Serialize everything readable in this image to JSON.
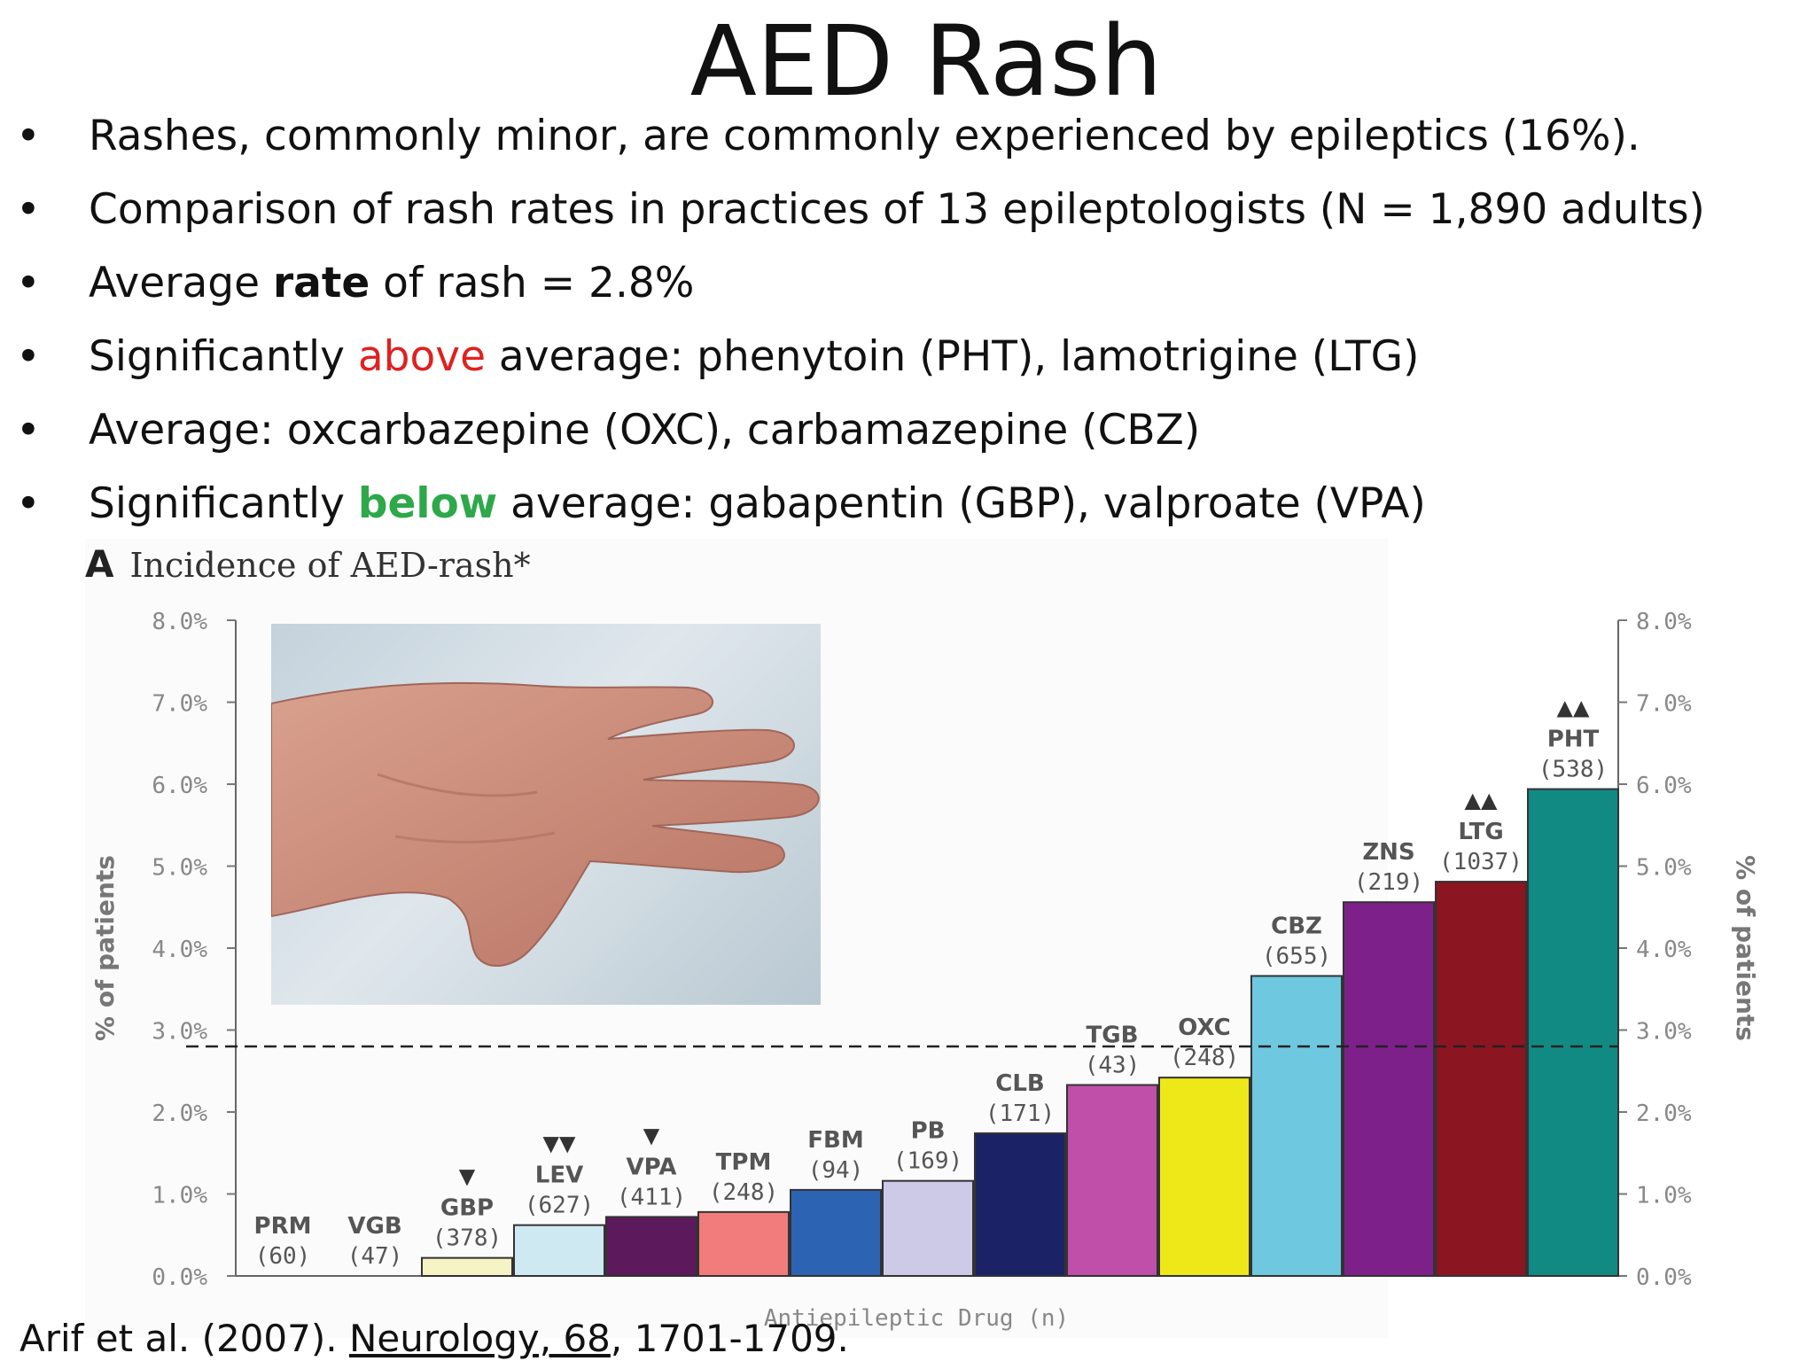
{
  "title": "AED Rash",
  "bullets": [
    {
      "marker": "•",
      "parts": [
        {
          "text": "Rashes, commonly minor, are commonly experienced by epileptics (16%)."
        }
      ]
    },
    {
      "marker": "•",
      "parts": [
        {
          "text": "Comparison of rash rates in practices of 13 epileptologists (N = 1,890 adults)"
        }
      ]
    },
    {
      "marker": "•",
      "parts": [
        {
          "text": "Average "
        },
        {
          "text": "rate",
          "style": "bold"
        },
        {
          "text": " of rash = 2.8%"
        }
      ]
    },
    {
      "marker": "•",
      "parts": [
        {
          "text": "Significantly "
        },
        {
          "text": "above",
          "style": "red"
        },
        {
          "text": " average:  phenytoin (PHT), lamotrigine (LTG)"
        }
      ]
    },
    {
      "marker": "•",
      "parts": [
        {
          "text": "Average: oxcarbazepine (OXC), carbamazepine (CBZ)"
        }
      ]
    },
    {
      "marker": "•",
      "parts": [
        {
          "text": "Significantly "
        },
        {
          "text": "below",
          "style": "green"
        },
        {
          "text": " average: gabapentin (GBP), valproate (VPA)"
        }
      ]
    }
  ],
  "figure": {
    "letter": "A",
    "title": "Incidence of AED-rash*",
    "photo_alt": "hand with rash"
  },
  "chart_data": {
    "type": "bar",
    "ylabel": "% of patients",
    "y2label": "% of patients",
    "xlabel": "Antiepileptic Drug (n)",
    "ylim": [
      0,
      8
    ],
    "yticks": [
      "0.0%",
      "1.0%",
      "2.0%",
      "3.0%",
      "4.0%",
      "5.0%",
      "6.0%",
      "7.0%",
      "8.0%"
    ],
    "average_line": 2.8,
    "bars": [
      {
        "drug": "PRM",
        "n": "(60)",
        "value": 0.0,
        "color": "#ffffff",
        "marker": ""
      },
      {
        "drug": "VGB",
        "n": "(47)",
        "value": 0.0,
        "color": "#ffffff",
        "marker": ""
      },
      {
        "drug": "GBP",
        "n": "(378)",
        "value": 0.22,
        "color": "#f6f3c4",
        "marker": "▼"
      },
      {
        "drug": "LEV",
        "n": "(627)",
        "value": 0.62,
        "color": "#cfe9f3",
        "marker": "▼▼"
      },
      {
        "drug": "VPA",
        "n": "(411)",
        "value": 0.72,
        "color": "#5c1a5c",
        "marker": "▼"
      },
      {
        "drug": "TPM",
        "n": "(248)",
        "value": 0.78,
        "color": "#f27b7b",
        "marker": ""
      },
      {
        "drug": "FBM",
        "n": "(94)",
        "value": 1.05,
        "color": "#2d63b3",
        "marker": ""
      },
      {
        "drug": "PB",
        "n": "(169)",
        "value": 1.16,
        "color": "#cdcae8",
        "marker": ""
      },
      {
        "drug": "CLB",
        "n": "(171)",
        "value": 1.74,
        "color": "#1c2266",
        "marker": ""
      },
      {
        "drug": "TGB",
        "n": "(43)",
        "value": 2.33,
        "color": "#bf4fa8",
        "marker": ""
      },
      {
        "drug": "OXC",
        "n": "(248)",
        "value": 2.42,
        "color": "#efe818",
        "marker": ""
      },
      {
        "drug": "CBZ",
        "n": "(655)",
        "value": 3.66,
        "color": "#6ec8e0",
        "marker": ""
      },
      {
        "drug": "ZNS",
        "n": "(219)",
        "value": 4.56,
        "color": "#7d2089",
        "marker": ""
      },
      {
        "drug": "LTG",
        "n": "(1037)",
        "value": 4.81,
        "color": "#8b1520",
        "marker": "▲▲"
      },
      {
        "drug": "PHT",
        "n": "(538)",
        "value": 5.94,
        "color": "#128a84",
        "marker": "▲▲"
      }
    ]
  },
  "citation": {
    "before": "Arif et al. (2007). ",
    "journal": "Neurology, 68",
    "after": ", 1701-1709."
  }
}
